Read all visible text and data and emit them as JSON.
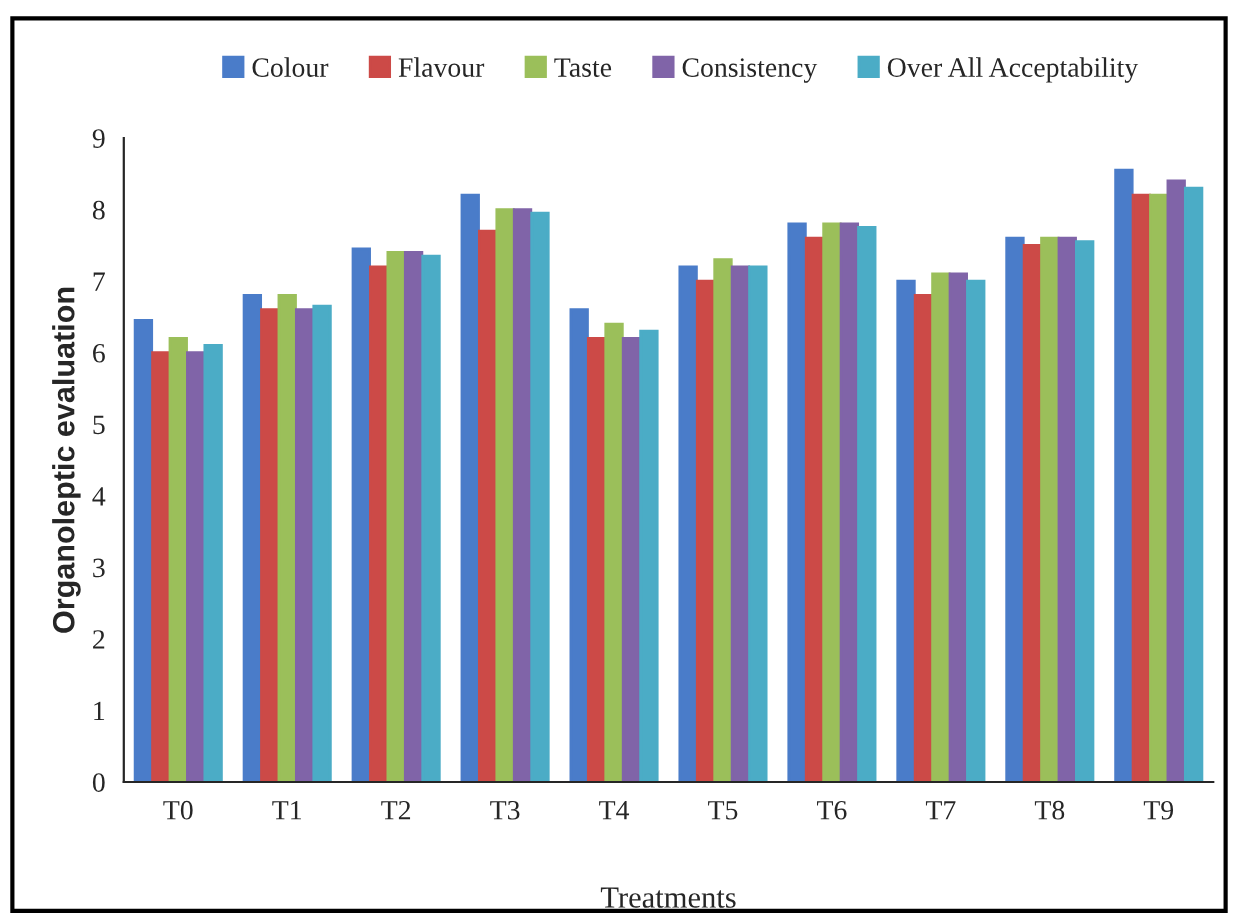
{
  "chart_data": {
    "type": "bar",
    "xlabel": "Treatments",
    "ylabel": "Organoleptic evaluation",
    "categories": [
      "T0",
      "T1",
      "T2",
      "T3",
      "T4",
      "T5",
      "T6",
      "T7",
      "T8",
      "T9"
    ],
    "series": [
      {
        "name": "Colour",
        "color": "#4a7cc9",
        "values": [
          6.45,
          6.8,
          7.45,
          8.2,
          6.6,
          7.2,
          7.8,
          7.0,
          7.6,
          8.55
        ]
      },
      {
        "name": "Flavour",
        "color": "#cc4a47",
        "values": [
          6.0,
          6.6,
          7.2,
          7.7,
          6.2,
          7.0,
          7.6,
          6.8,
          7.5,
          8.2
        ]
      },
      {
        "name": "Taste",
        "color": "#9bbf5a",
        "values": [
          6.2,
          6.8,
          7.4,
          8.0,
          6.4,
          7.3,
          7.8,
          7.1,
          7.6,
          8.2
        ]
      },
      {
        "name": "Consistency",
        "color": "#8064a8",
        "values": [
          6.0,
          6.6,
          7.4,
          8.0,
          6.2,
          7.2,
          7.8,
          7.1,
          7.6,
          8.4
        ]
      },
      {
        "name": "Over All Acceptability",
        "color": "#4bacc6",
        "values": [
          6.1,
          6.65,
          7.35,
          7.95,
          6.3,
          7.2,
          7.75,
          7.0,
          7.55,
          8.3
        ]
      }
    ],
    "ylim": [
      0,
      9
    ],
    "yticks": [
      0,
      1,
      2,
      3,
      4,
      5,
      6,
      7,
      8,
      9
    ],
    "grid": false,
    "legend": "top"
  }
}
